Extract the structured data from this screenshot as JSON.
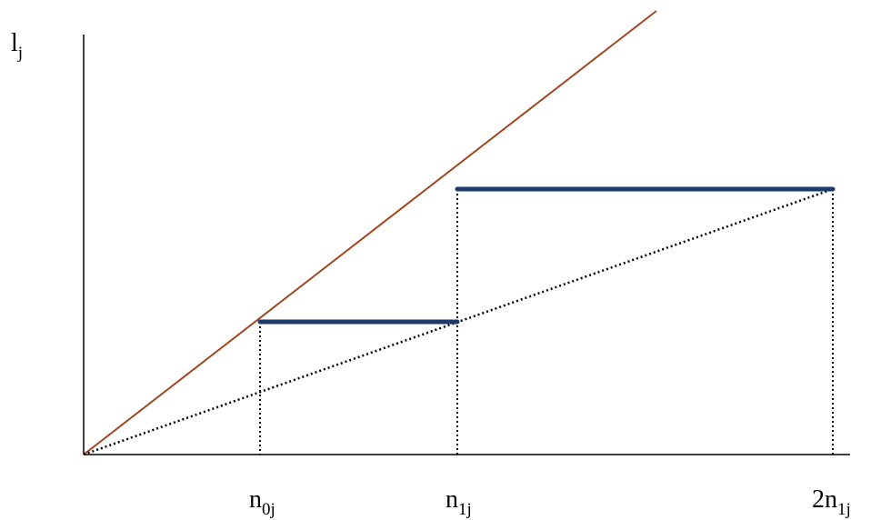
{
  "labels": {
    "y_axis": {
      "base": "l",
      "sub": "j"
    },
    "n0": {
      "base": "n",
      "sub": "0j"
    },
    "n1": {
      "base": "n",
      "sub": "1j"
    },
    "n2": {
      "base": "2n",
      "sub": "1j"
    }
  },
  "colors": {
    "axis": "#000000",
    "diagonal": "#a0461e",
    "step": "#1a3a6b",
    "dotted": "#000000"
  }
}
